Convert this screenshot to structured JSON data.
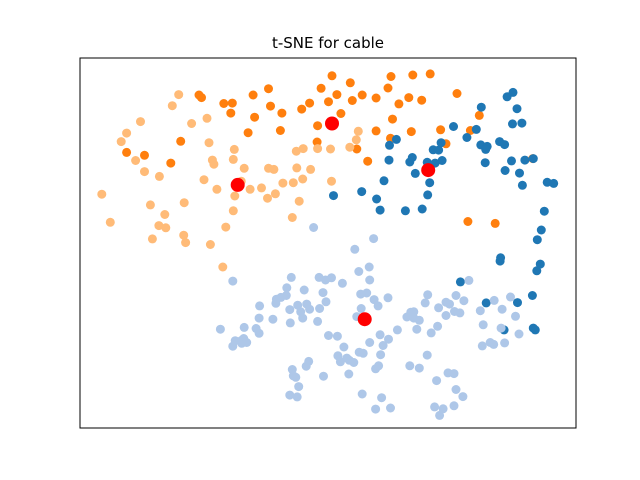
{
  "chart_data": {
    "type": "scatter",
    "title": "t-SNE for cable",
    "xlabel": "",
    "ylabel": "",
    "xlim": [
      0,
      100
    ],
    "ylim": [
      0,
      100
    ],
    "grid": false,
    "axis_ticks": false,
    "legend": null,
    "colors": {
      "cluster_dark_blue": "#1f77b4",
      "cluster_light_blue": "#aec7e8",
      "cluster_dark_orange": "#ff7f0e",
      "cluster_light_orange": "#ffbb78",
      "centroid": "#ff0000"
    },
    "series": [
      {
        "color_key": "cluster_dark_orange",
        "points": [
          [
            24.0,
            90.0
          ],
          [
            24.5,
            89.3
          ],
          [
            30.7,
            87.8
          ],
          [
            34.9,
            90.0
          ],
          [
            38.0,
            91.7
          ],
          [
            38.4,
            87.0
          ],
          [
            35.2,
            84.0
          ],
          [
            40.7,
            85.1
          ],
          [
            44.7,
            86.2
          ],
          [
            46.3,
            87.8
          ],
          [
            48.6,
            91.8
          ],
          [
            51.8,
            90.1
          ],
          [
            54.9,
            88.5
          ],
          [
            50.8,
            95.2
          ],
          [
            54.5,
            93.3
          ],
          [
            56.9,
            90.0
          ],
          [
            59.7,
            89.2
          ],
          [
            62.7,
            95.0
          ],
          [
            62.1,
            91.9
          ],
          [
            64.3,
            87.6
          ],
          [
            66.3,
            89.3
          ],
          [
            67.1,
            95.4
          ],
          [
            70.6,
            95.7
          ],
          [
            63.0,
            83.5
          ],
          [
            59.7,
            80.3
          ],
          [
            62.6,
            78.3
          ],
          [
            58.0,
            72.1
          ],
          [
            55.8,
            75.4
          ],
          [
            52.6,
            85.0
          ],
          [
            50.1,
            88.2
          ],
          [
            47.9,
            81.7
          ],
          [
            47.8,
            77.3
          ],
          [
            40.4,
            80.4
          ],
          [
            33.9,
            79.8
          ],
          [
            30.4,
            85.1
          ],
          [
            29.0,
            87.7
          ],
          [
            20.3,
            77.5
          ],
          [
            9.4,
            74.5
          ],
          [
            13.0,
            73.7
          ],
          [
            18.3,
            71.6
          ],
          [
            66.8,
            80.1
          ],
          [
            68.9,
            88.6
          ],
          [
            72.7,
            80.6
          ],
          [
            76.0,
            90.4
          ],
          [
            80.5,
            84.5
          ],
          [
            73.8,
            76.8
          ],
          [
            78.7,
            80.4
          ],
          [
            83.7,
            55.3
          ],
          [
            91.3,
            72.8
          ],
          [
            78.2,
            55.8
          ]
        ]
      },
      {
        "color_key": "cluster_light_orange",
        "points": [
          [
            18.6,
            87.1
          ],
          [
            19.9,
            90.1
          ],
          [
            25.6,
            83.7
          ],
          [
            22.5,
            82.3
          ],
          [
            12.2,
            82.8
          ],
          [
            9.4,
            79.7
          ],
          [
            8.3,
            77.4
          ],
          [
            4.4,
            63.2
          ],
          [
            6.1,
            55.6
          ],
          [
            11.2,
            72.3
          ],
          [
            13.0,
            69.3
          ],
          [
            16.0,
            68.0
          ],
          [
            14.2,
            60.3
          ],
          [
            17.1,
            57.7
          ],
          [
            21.0,
            60.9
          ],
          [
            15.9,
            54.7
          ],
          [
            14.6,
            51.1
          ],
          [
            17.3,
            54.1
          ],
          [
            20.9,
            52.1
          ],
          [
            21.3,
            50.1
          ],
          [
            26.3,
            49.6
          ],
          [
            25.0,
            67.1
          ],
          [
            27.6,
            64.5
          ],
          [
            27.0,
            71.3
          ],
          [
            30.9,
            72.6
          ],
          [
            31.1,
            75.3
          ],
          [
            26.0,
            77.1
          ],
          [
            26.7,
            72.4
          ],
          [
            33.1,
            70.2
          ],
          [
            32.5,
            66.7
          ],
          [
            31.6,
            65.2
          ],
          [
            31.2,
            62.7
          ],
          [
            30.9,
            58.7
          ],
          [
            29.4,
            54.3
          ],
          [
            34.3,
            64.5
          ],
          [
            36.6,
            64.9
          ],
          [
            38.0,
            70.2
          ],
          [
            39.1,
            69.9
          ],
          [
            37.8,
            62.1
          ],
          [
            39.4,
            63.3
          ],
          [
            40.9,
            66.2
          ],
          [
            43.0,
            66.3
          ],
          [
            43.7,
            70.3
          ],
          [
            45.0,
            75.5
          ],
          [
            46.5,
            69.9
          ],
          [
            47.9,
            75.5
          ],
          [
            43.6,
            74.8
          ],
          [
            44.9,
            67.3
          ],
          [
            50.7,
            66.7
          ],
          [
            50.5,
            75.4
          ],
          [
            54.4,
            75.9
          ],
          [
            55.7,
            77.9
          ],
          [
            56.1,
            80.2
          ],
          [
            42.8,
            56.9
          ],
          [
            44.2,
            61.3
          ],
          [
            28.8,
            43.5
          ]
        ]
      },
      {
        "color_key": "cluster_dark_blue",
        "points": [
          [
            56.8,
            63.9
          ],
          [
            51.1,
            62.8
          ],
          [
            61.3,
            66.8
          ],
          [
            60.5,
            58.9
          ],
          [
            59.8,
            61.9
          ],
          [
            62.3,
            72.4
          ],
          [
            62.4,
            76.4
          ],
          [
            63.8,
            78.0
          ],
          [
            66.5,
            71.9
          ],
          [
            67.0,
            73.1
          ],
          [
            67.6,
            68.8
          ],
          [
            70.5,
            66.3
          ],
          [
            71.2,
            75.2
          ],
          [
            70.0,
            71.8
          ],
          [
            70.1,
            63.0
          ],
          [
            71.6,
            71.6
          ],
          [
            69.0,
            59.2
          ],
          [
            73.0,
            72.3
          ],
          [
            72.3,
            75.1
          ],
          [
            72.8,
            77.1
          ],
          [
            75.3,
            81.5
          ],
          [
            78.0,
            78.5
          ],
          [
            79.9,
            80.7
          ],
          [
            80.9,
            86.7
          ],
          [
            81.7,
            71.7
          ],
          [
            80.8,
            76.5
          ],
          [
            82.1,
            76.1
          ],
          [
            85.7,
            69.6
          ],
          [
            81.8,
            75.3
          ],
          [
            84.6,
            77.4
          ],
          [
            87.0,
            72.2
          ],
          [
            89.2,
            65.6
          ],
          [
            85.6,
            76.6
          ],
          [
            88.6,
            68.9
          ],
          [
            89.7,
            72.4
          ],
          [
            91.4,
            72.8
          ],
          [
            87.2,
            82.2
          ],
          [
            89.1,
            82.4
          ],
          [
            88.1,
            86.3
          ],
          [
            87.3,
            90.7
          ],
          [
            86.1,
            89.5
          ],
          [
            94.2,
            66.4
          ],
          [
            95.5,
            66.1
          ],
          [
            93.0,
            53.5
          ],
          [
            92.2,
            50.9
          ],
          [
            93.6,
            58.6
          ],
          [
            84.8,
            46.0
          ],
          [
            84.7,
            45.1
          ],
          [
            92.1,
            42.5
          ],
          [
            92.8,
            44.3
          ],
          [
            91.2,
            35.8
          ],
          [
            88.2,
            33.9
          ],
          [
            91.4,
            27.0
          ],
          [
            91.8,
            26.5
          ],
          [
            85.5,
            26.5
          ],
          [
            81.9,
            33.8
          ],
          [
            76.7,
            39.5
          ],
          [
            65.6,
            58.7
          ]
        ]
      },
      {
        "color_key": "cluster_light_blue",
        "points": [
          [
            47.1,
            54.2
          ],
          [
            55.4,
            48.3
          ],
          [
            59.2,
            51.2
          ],
          [
            58.3,
            43.5
          ],
          [
            58.4,
            40.0
          ],
          [
            57.8,
            36.5
          ],
          [
            62.1,
            35.2
          ],
          [
            59.3,
            34.7
          ],
          [
            60.1,
            33.0
          ],
          [
            55.8,
            30.1
          ],
          [
            56.7,
            32.3
          ],
          [
            56.6,
            36.2
          ],
          [
            56.2,
            42.3
          ],
          [
            52.9,
            39.1
          ],
          [
            49.5,
            40.0
          ],
          [
            49.0,
            36.6
          ],
          [
            48.3,
            32.3
          ],
          [
            44.5,
            31.4
          ],
          [
            43.9,
            33.2
          ],
          [
            47.9,
            28.8
          ],
          [
            42.3,
            32.0
          ],
          [
            41.6,
            35.8
          ],
          [
            40.5,
            35.3
          ],
          [
            42.6,
            40.7
          ],
          [
            48.2,
            40.7
          ],
          [
            50.7,
            40.6
          ],
          [
            44.9,
            29.7
          ],
          [
            42.4,
            28.4
          ],
          [
            39.5,
            33.7
          ],
          [
            36.2,
            33.0
          ],
          [
            35.5,
            26.9
          ],
          [
            36.1,
            25.6
          ],
          [
            33.0,
            24.2
          ],
          [
            32.6,
            22.9
          ],
          [
            31.3,
            23.6
          ],
          [
            30.8,
            22.1
          ],
          [
            32.6,
            23.7
          ],
          [
            33.6,
            23.1
          ],
          [
            28.3,
            26.7
          ],
          [
            30.8,
            39.7
          ],
          [
            33.1,
            27.2
          ],
          [
            36.1,
            29.7
          ],
          [
            38.9,
            29.4
          ],
          [
            39.6,
            34.8
          ],
          [
            41.7,
            37.9
          ],
          [
            45.2,
            37.3
          ],
          [
            45.7,
            33.5
          ],
          [
            46.3,
            32.1
          ],
          [
            49.6,
            34.1
          ],
          [
            51.9,
            24.8
          ],
          [
            50.1,
            25.0
          ],
          [
            53.2,
            21.9
          ],
          [
            55.2,
            17.7
          ],
          [
            54.3,
            18.3
          ],
          [
            57.1,
            20.2
          ],
          [
            59.6,
            16.0
          ],
          [
            60.2,
            16.8
          ],
          [
            60.6,
            19.8
          ],
          [
            64.0,
            26.5
          ],
          [
            65.9,
            30.0
          ],
          [
            67.3,
            31.4
          ],
          [
            68.4,
            29.1
          ],
          [
            69.6,
            33.8
          ],
          [
            70.1,
            36.0
          ],
          [
            72.3,
            32.5
          ],
          [
            73.8,
            34.0
          ],
          [
            75.5,
            31.5
          ],
          [
            75.8,
            35.8
          ],
          [
            77.4,
            34.4
          ],
          [
            78.4,
            39.9
          ],
          [
            80.7,
            31.7
          ],
          [
            83.5,
            34.5
          ],
          [
            85.1,
            32.1
          ],
          [
            86.8,
            35.4
          ],
          [
            87.8,
            30.2
          ],
          [
            88.5,
            25.4
          ],
          [
            85.6,
            23.0
          ],
          [
            83.4,
            22.6
          ],
          [
            81.1,
            22.2
          ],
          [
            84.9,
            27.0
          ],
          [
            82.7,
            23.1
          ],
          [
            81.3,
            27.9
          ],
          [
            76.6,
            31.1
          ],
          [
            74.5,
            33.5
          ],
          [
            73.8,
            30.4
          ],
          [
            72.1,
            27.5
          ],
          [
            70.8,
            25.7
          ],
          [
            70.0,
            19.7
          ],
          [
            67.9,
            26.7
          ],
          [
            67.3,
            29.7
          ],
          [
            66.7,
            31.3
          ],
          [
            62.2,
            24.0
          ],
          [
            61.1,
            22.3
          ],
          [
            60.5,
            25.2
          ],
          [
            58.4,
            23.1
          ],
          [
            56.3,
            20.5
          ],
          [
            53.8,
            18.9
          ],
          [
            46.1,
            18.0
          ],
          [
            45.6,
            16.7
          ],
          [
            42.8,
            15.8
          ],
          [
            42.3,
            8.9
          ],
          [
            43.8,
            8.4
          ],
          [
            44.1,
            11.2
          ],
          [
            43.0,
            14.1
          ],
          [
            43.5,
            13.7
          ],
          [
            49.1,
            14.0
          ],
          [
            52.0,
            19.5
          ],
          [
            56.9,
            9.2
          ],
          [
            59.6,
            5.1
          ],
          [
            62.6,
            5.4
          ],
          [
            60.8,
            8.2
          ],
          [
            54.2,
            14.6
          ],
          [
            52.5,
            17.9
          ],
          [
            66.5,
            16.8
          ],
          [
            68.4,
            16.2
          ],
          [
            71.9,
            12.8
          ],
          [
            74.2,
            14.9
          ],
          [
            75.4,
            14.7
          ],
          [
            75.8,
            10.4
          ],
          [
            77.2,
            8.5
          ],
          [
            75.4,
            6.0
          ],
          [
            73.2,
            5.2
          ],
          [
            72.5,
            3.4
          ],
          [
            71.5,
            5.7
          ]
        ]
      }
    ],
    "centroids": [
      [
        50.8,
        82.3
      ],
      [
        31.8,
        65.7
      ],
      [
        70.2,
        69.7
      ],
      [
        57.4,
        29.4
      ]
    ]
  }
}
